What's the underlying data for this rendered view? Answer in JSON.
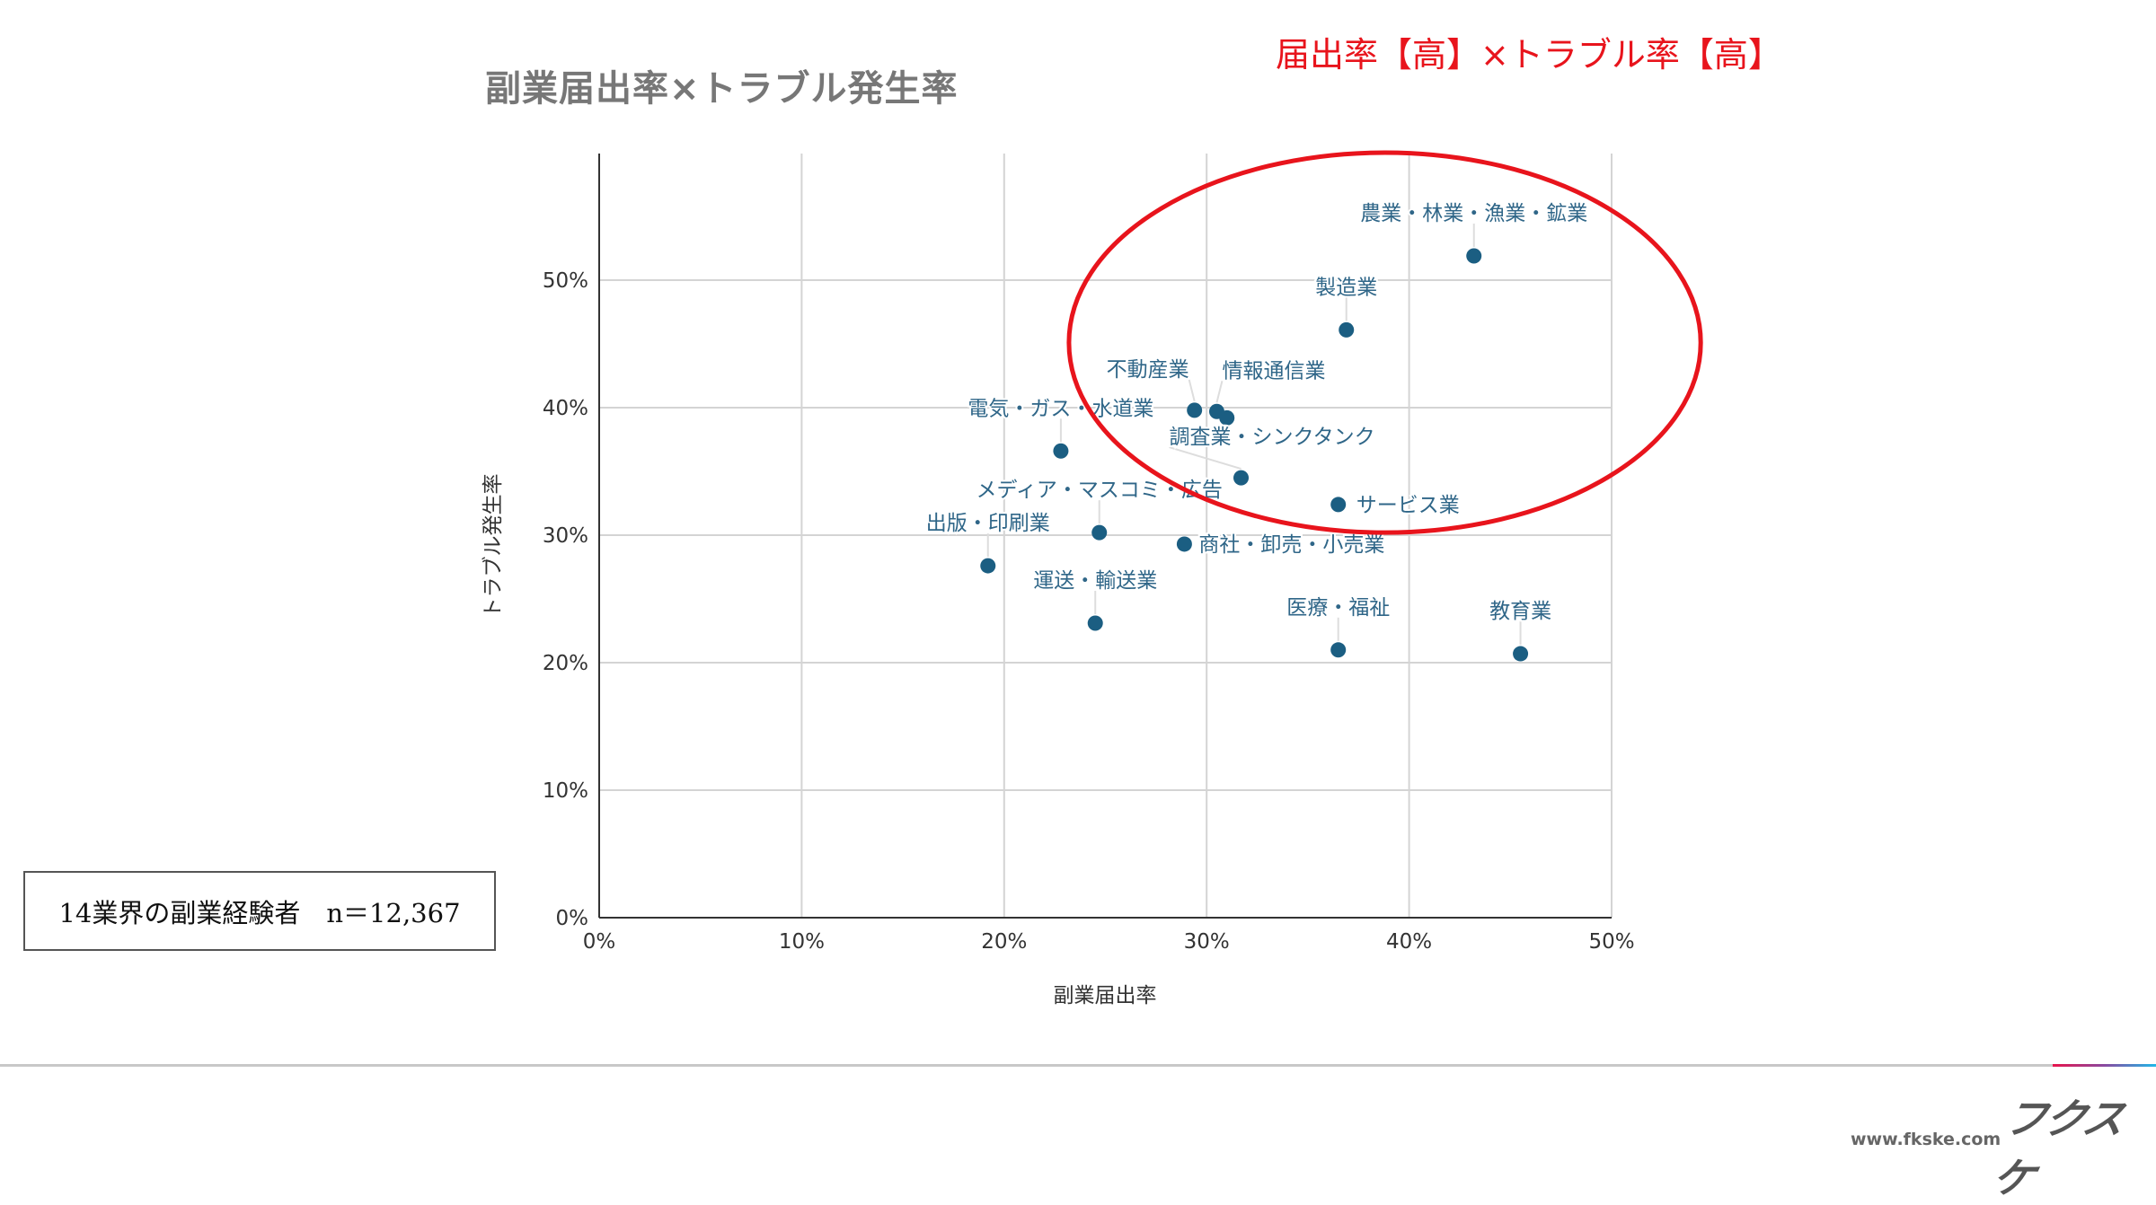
{
  "header": {
    "title": "副業届出率×トラブル発生率",
    "highlight": "届出率【高】×トラブル率【高】"
  },
  "sample_note": "14業界の副業経験者　n＝12,367",
  "footer": {
    "site": "www.fkske.com",
    "logo": "フクスケ"
  },
  "colors": {
    "point": "#1b5e82",
    "label": "#2f6688",
    "highlight": "#e8141c",
    "grid": "#d4d4d4"
  },
  "chart_data": {
    "type": "scatter",
    "title": "副業届出率×トラブル発生率",
    "xlabel": "副業届出率",
    "ylabel": "トラブル発生率",
    "xlim": [
      0,
      50
    ],
    "ylim": [
      0,
      60
    ],
    "x_ticks": [
      "0%",
      "10%",
      "20%",
      "30%",
      "40%",
      "50%"
    ],
    "y_ticks": [
      "0%",
      "10%",
      "20%",
      "30%",
      "40%",
      "50%"
    ],
    "grid": true,
    "points": [
      {
        "label": "農業・林業・漁業・鉱業",
        "x": 43.2,
        "y": 51.9
      },
      {
        "label": "製造業",
        "x": 36.9,
        "y": 46.1
      },
      {
        "label": "不動産業",
        "x": 29.4,
        "y": 39.8
      },
      {
        "label": "情報通信業",
        "x": 30.5,
        "y": 39.7
      },
      {
        "label": "",
        "x": 31.0,
        "y": 39.2
      },
      {
        "label": "電気・ガス・水道業",
        "x": 22.8,
        "y": 36.6
      },
      {
        "label": "調査業・シンクタンク",
        "x": 31.7,
        "y": 34.5
      },
      {
        "label": "サービス業",
        "x": 36.5,
        "y": 32.4
      },
      {
        "label": "メディア・マスコミ・広告",
        "x": 24.7,
        "y": 30.2
      },
      {
        "label": "商社・卸売・小売業",
        "x": 28.9,
        "y": 29.3
      },
      {
        "label": "出版・印刷業",
        "x": 19.2,
        "y": 27.6
      },
      {
        "label": "運送・輸送業",
        "x": 24.5,
        "y": 23.1
      },
      {
        "label": "医療・福祉",
        "x": 36.5,
        "y": 21.0
      },
      {
        "label": "教育業",
        "x": 45.5,
        "y": 20.7
      }
    ],
    "annotation": {
      "shape": "ellipse",
      "text": "届出率【高】×トラブル率【高】",
      "x_range": [
        23.2,
        54.4
      ],
      "y_range": [
        30.2,
        60.0
      ]
    }
  }
}
